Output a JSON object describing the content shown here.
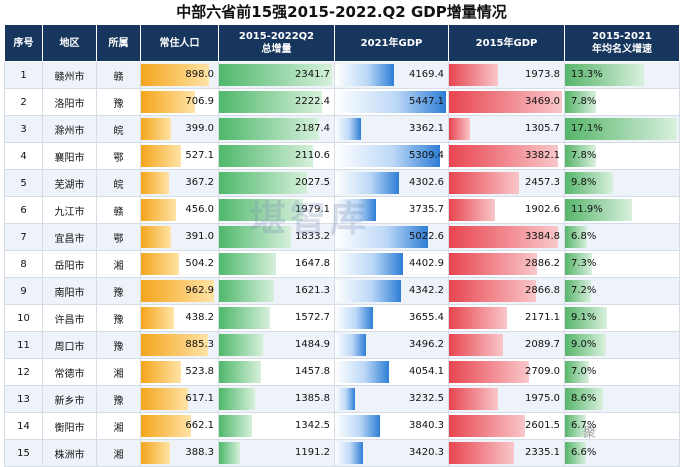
{
  "title": "中部六省前15强2015-2022.Q2 GDP增量情况",
  "watermark": "堪智库",
  "corner_mark": "聚",
  "colors": {
    "header_bg": "#17365d",
    "population_bar": "#f4a51c",
    "increment_bar": "#4fb86b",
    "gdp2021_bar": "#2e7ed6",
    "gdp2015_bar": "#e8454f",
    "growth_bar": "#57b56a"
  },
  "headers": {
    "no": "序号",
    "region": "地区",
    "province": "所属",
    "population": "常住人口",
    "increment_line1": "2015-2022Q2",
    "increment_line2": "总增量",
    "gdp2021": "2021年GDP",
    "gdp2015": "2015年GDP",
    "growth_line1": "2015-2021",
    "growth_line2": "年均名义增速"
  },
  "rows": [
    {
      "no": "1",
      "region": "赣州市",
      "province": "赣",
      "population": "898.0",
      "increment": "2341.7",
      "gdp2021": "4169.4",
      "gdp2015": "1973.8",
      "growth": "13.3%"
    },
    {
      "no": "2",
      "region": "洛阳市",
      "province": "豫",
      "population": "706.9",
      "increment": "2222.4",
      "gdp2021": "5447.1",
      "gdp2015": "3469.0",
      "growth": "7.8%"
    },
    {
      "no": "3",
      "region": "滁州市",
      "province": "皖",
      "population": "399.0",
      "increment": "2187.4",
      "gdp2021": "3362.1",
      "gdp2015": "1305.7",
      "growth": "17.1%"
    },
    {
      "no": "4",
      "region": "襄阳市",
      "province": "鄂",
      "population": "527.1",
      "increment": "2110.6",
      "gdp2021": "5309.4",
      "gdp2015": "3382.1",
      "growth": "7.8%"
    },
    {
      "no": "5",
      "region": "芜湖市",
      "province": "皖",
      "population": "367.2",
      "increment": "2027.5",
      "gdp2021": "4302.6",
      "gdp2015": "2457.3",
      "growth": "9.8%"
    },
    {
      "no": "6",
      "region": "九江市",
      "province": "赣",
      "population": "456.0",
      "increment": "1979.1",
      "gdp2021": "3735.7",
      "gdp2015": "1902.6",
      "growth": "11.9%"
    },
    {
      "no": "7",
      "region": "宜昌市",
      "province": "鄂",
      "population": "391.0",
      "increment": "1833.2",
      "gdp2021": "5022.6",
      "gdp2015": "3384.8",
      "growth": "6.8%"
    },
    {
      "no": "8",
      "region": "岳阳市",
      "province": "湘",
      "population": "504.2",
      "increment": "1647.8",
      "gdp2021": "4402.9",
      "gdp2015": "2886.2",
      "growth": "7.3%"
    },
    {
      "no": "9",
      "region": "南阳市",
      "province": "豫",
      "population": "962.9",
      "increment": "1621.3",
      "gdp2021": "4342.2",
      "gdp2015": "2866.8",
      "growth": "7.2%"
    },
    {
      "no": "10",
      "region": "许昌市",
      "province": "豫",
      "population": "438.2",
      "increment": "1572.7",
      "gdp2021": "3655.4",
      "gdp2015": "2171.1",
      "growth": "9.1%"
    },
    {
      "no": "11",
      "region": "周口市",
      "province": "豫",
      "population": "885.3",
      "increment": "1484.9",
      "gdp2021": "3496.2",
      "gdp2015": "2089.7",
      "growth": "9.0%"
    },
    {
      "no": "12",
      "region": "常德市",
      "province": "湘",
      "population": "523.8",
      "increment": "1457.8",
      "gdp2021": "4054.1",
      "gdp2015": "2709.0",
      "growth": "7.0%"
    },
    {
      "no": "13",
      "region": "新乡市",
      "province": "豫",
      "population": "617.1",
      "increment": "1385.8",
      "gdp2021": "3232.5",
      "gdp2015": "1975.0",
      "growth": "8.6%"
    },
    {
      "no": "14",
      "region": "衡阳市",
      "province": "湘",
      "population": "662.1",
      "increment": "1342.5",
      "gdp2021": "3840.3",
      "gdp2015": "2601.5",
      "growth": "6.7%"
    },
    {
      "no": "15",
      "region": "株洲市",
      "province": "湘",
      "population": "388.3",
      "increment": "1191.2",
      "gdp2021": "3420.3",
      "gdp2015": "2335.1",
      "growth": "6.6%"
    }
  ]
}
